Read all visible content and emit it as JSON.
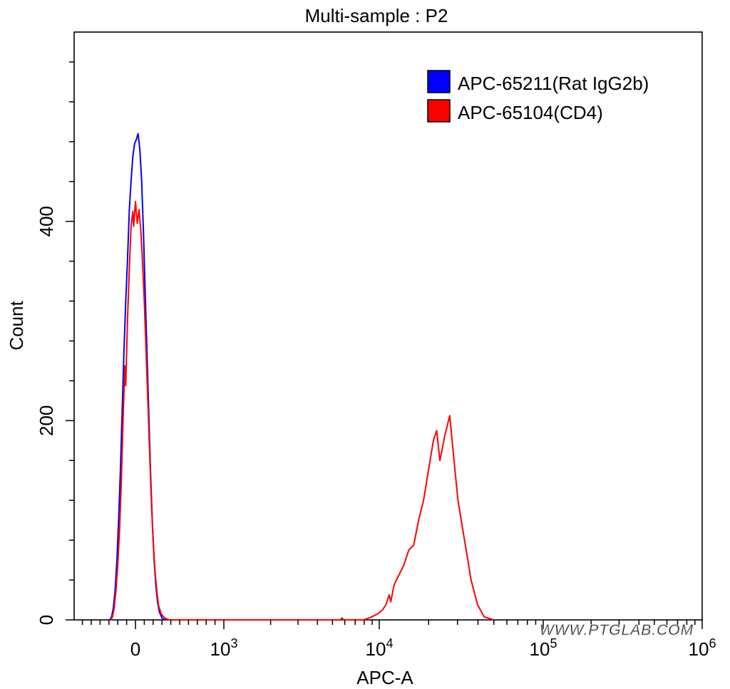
{
  "chart_data": {
    "type": "histogram",
    "title": "Multi-sample : P2",
    "xlabel": "APC-A",
    "ylabel": "Count",
    "ylim": [
      0,
      590
    ],
    "x_scale": "biexponential",
    "x_tick_labels": [
      {
        "base": "0",
        "exp": ""
      },
      {
        "base": "10",
        "exp": "3"
      },
      {
        "base": "10",
        "exp": "4"
      },
      {
        "base": "10",
        "exp": "5"
      },
      {
        "base": "10",
        "exp": "6"
      }
    ],
    "y_ticks": [
      0,
      200,
      400
    ],
    "legend": {
      "placement": "top-right",
      "entries": [
        {
          "name": "APC-65211(Rat IgG2b)",
          "color": "#0000ff"
        },
        {
          "name": "APC-65104(CD4)",
          "color": "#ff0000"
        }
      ]
    },
    "watermark": "WWW.PTGLAB.COM",
    "series": [
      {
        "name": "APC-65211(Rat IgG2b)",
        "color": "#0000ff",
        "x_units": "display decades (0 = zero tick, 1 = 10^3, 2 = 10^4, 3 = 10^5, 4 = 10^6)",
        "points": [
          [
            -0.29,
            0
          ],
          [
            -0.27,
            3
          ],
          [
            -0.25,
            12
          ],
          [
            -0.23,
            30
          ],
          [
            -0.21,
            60
          ],
          [
            -0.19,
            100
          ],
          [
            -0.17,
            150
          ],
          [
            -0.15,
            210
          ],
          [
            -0.13,
            270
          ],
          [
            -0.11,
            320
          ],
          [
            -0.09,
            360
          ],
          [
            -0.07,
            410
          ],
          [
            -0.05,
            440
          ],
          [
            -0.03,
            465
          ],
          [
            -0.01,
            478
          ],
          [
            0.01,
            482
          ],
          [
            0.03,
            488
          ],
          [
            0.05,
            472
          ],
          [
            0.07,
            440
          ],
          [
            0.09,
            390
          ],
          [
            0.11,
            330
          ],
          [
            0.13,
            270
          ],
          [
            0.15,
            210
          ],
          [
            0.17,
            150
          ],
          [
            0.19,
            100
          ],
          [
            0.21,
            62
          ],
          [
            0.23,
            35
          ],
          [
            0.25,
            18
          ],
          [
            0.27,
            8
          ],
          [
            0.3,
            2
          ],
          [
            0.33,
            0
          ]
        ]
      },
      {
        "name": "APC-65104(CD4)",
        "color": "#ff0000",
        "x_units": "display decades (0 = zero tick, 1 = 10^3, 2 = 10^4, 3 = 10^5, 4 = 10^6)",
        "points": [
          [
            -0.28,
            0
          ],
          [
            -0.26,
            3
          ],
          [
            -0.24,
            12
          ],
          [
            -0.22,
            30
          ],
          [
            -0.2,
            55
          ],
          [
            -0.18,
            90
          ],
          [
            -0.16,
            140
          ],
          [
            -0.14,
            200
          ],
          [
            -0.12,
            255
          ],
          [
            -0.11,
            235
          ],
          [
            -0.09,
            300
          ],
          [
            -0.07,
            350
          ],
          [
            -0.05,
            395
          ],
          [
            -0.03,
            410
          ],
          [
            -0.02,
            395
          ],
          [
            0.0,
            420
          ],
          [
            0.02,
            398
          ],
          [
            0.04,
            412
          ],
          [
            0.06,
            392
          ],
          [
            0.08,
            360
          ],
          [
            0.1,
            320
          ],
          [
            0.12,
            270
          ],
          [
            0.14,
            220
          ],
          [
            0.16,
            170
          ],
          [
            0.18,
            120
          ],
          [
            0.2,
            80
          ],
          [
            0.22,
            50
          ],
          [
            0.24,
            30
          ],
          [
            0.26,
            15
          ],
          [
            0.29,
            6
          ],
          [
            0.33,
            2
          ],
          [
            0.38,
            0
          ],
          [
            1.25,
            0
          ],
          [
            1.75,
            0
          ],
          [
            1.76,
            2
          ],
          [
            1.77,
            0
          ],
          [
            1.9,
            0
          ],
          [
            1.95,
            3
          ],
          [
            1.99,
            6
          ],
          [
            2.02,
            10
          ],
          [
            2.04,
            15
          ],
          [
            2.06,
            25
          ],
          [
            2.07,
            18
          ],
          [
            2.09,
            35
          ],
          [
            2.12,
            45
          ],
          [
            2.15,
            55
          ],
          [
            2.18,
            70
          ],
          [
            2.21,
            75
          ],
          [
            2.24,
            100
          ],
          [
            2.27,
            120
          ],
          [
            2.3,
            150
          ],
          [
            2.33,
            180
          ],
          [
            2.35,
            190
          ],
          [
            2.37,
            160
          ],
          [
            2.4,
            185
          ],
          [
            2.43,
            205
          ],
          [
            2.45,
            170
          ],
          [
            2.48,
            120
          ],
          [
            2.52,
            80
          ],
          [
            2.56,
            40
          ],
          [
            2.6,
            15
          ],
          [
            2.64,
            3
          ],
          [
            2.7,
            0
          ]
        ]
      }
    ]
  }
}
